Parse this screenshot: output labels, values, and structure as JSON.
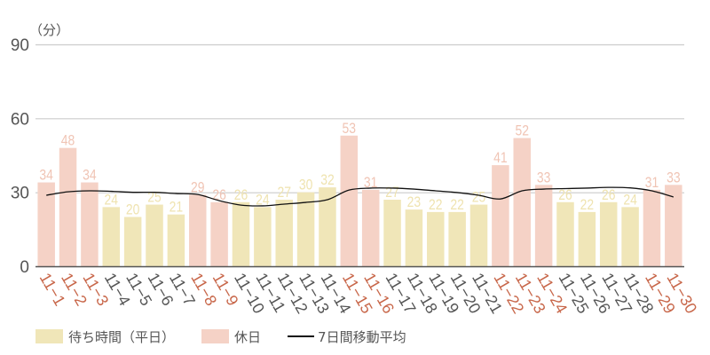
{
  "chart_data": {
    "type": "bar",
    "title": "",
    "unit_label": "（分）",
    "xlabel": "",
    "ylabel": "（分）",
    "ylim": [
      0,
      90
    ],
    "yticks": [
      0,
      30,
      60,
      90
    ],
    "grid": true,
    "legend_position": "bottom-left",
    "categories": [
      "11-1",
      "11-2",
      "11-3",
      "11-4",
      "11-5",
      "11-6",
      "11-7",
      "11-8",
      "11-9",
      "11-10",
      "11-11",
      "11-12",
      "11-13",
      "11-14",
      "11-15",
      "11-16",
      "11-17",
      "11-18",
      "11-19",
      "11-20",
      "11-21",
      "11-22",
      "11-23",
      "11-24",
      "11-25",
      "11-26",
      "11-27",
      "11-28",
      "11-29",
      "11-30"
    ],
    "day_type": [
      "holiday",
      "holiday",
      "holiday",
      "weekday",
      "weekday",
      "weekday",
      "weekday",
      "holiday",
      "holiday",
      "weekday",
      "weekday",
      "weekday",
      "weekday",
      "weekday",
      "holiday",
      "holiday",
      "weekday",
      "weekday",
      "weekday",
      "weekday",
      "weekday",
      "holiday",
      "holiday",
      "holiday",
      "weekday",
      "weekday",
      "weekday",
      "weekday",
      "holiday",
      "holiday"
    ],
    "values": [
      34,
      48,
      34,
      24,
      20,
      25,
      21,
      29,
      26,
      26,
      24,
      27,
      30,
      32,
      53,
      31,
      27,
      23,
      22,
      22,
      25,
      41,
      52,
      33,
      26,
      22,
      26,
      24,
      31,
      33
    ],
    "series": [
      {
        "name": "待ち時間（平日）",
        "type": "bar",
        "color": "#f0e6b8"
      },
      {
        "name": "休日",
        "type": "bar",
        "color": "#f5d2c6"
      },
      {
        "name": "7日間移動平均",
        "type": "line",
        "color": "#111111",
        "values": [
          28.8,
          30.2,
          30.6,
          30.4,
          30.0,
          30.0,
          29.5,
          29.1,
          26.6,
          24.8,
          24.5,
          25.2,
          25.9,
          27.0,
          30.9,
          31.7,
          31.7,
          31.3,
          30.6,
          29.9,
          28.8,
          27.3,
          30.6,
          31.3,
          31.5,
          31.7,
          32.0,
          31.8,
          30.6,
          28.1
        ]
      }
    ]
  },
  "colors": {
    "weekday_bar": "#f0e6b8",
    "holiday_bar": "#f5d2c6",
    "weekday_label": "#efe3b0",
    "holiday_label": "#f0c4b4",
    "weekday_tick": "#555555",
    "holiday_tick": "#c8674a",
    "grid": "#cccccc",
    "axis": "#555555",
    "line": "#111111"
  },
  "legend": {
    "weekday": "待ち時間（平日）",
    "holiday": "休日",
    "moving_average": "7日間移動平均"
  }
}
